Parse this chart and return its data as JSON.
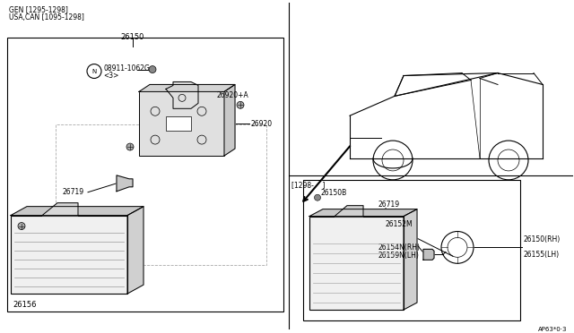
{
  "bg_color": "#ffffff",
  "line_color": "#000000",
  "gen_text": "GEN [1295-1298]",
  "usa_can_text": "USA,CAN [1095-1298]",
  "label_26150": "26150",
  "label_08911": "08911-1062G",
  "label_n": "N",
  "label_3": "<3>",
  "label_26920a": "26920+A",
  "label_26920": "26920",
  "label_26719": "26719",
  "label_26156": "26156",
  "label_1298": "[1298-    ]",
  "label_26150b": "26150B",
  "label_26719b": "26719",
  "label_26152m": "26152M",
  "label_26150rh": "26150(RH)",
  "label_26155lh": "26155(LH)",
  "label_26154n": "26154N(RH)",
  "label_26159n": "26159N(LH)",
  "label_ap63": "AP63*0·3"
}
